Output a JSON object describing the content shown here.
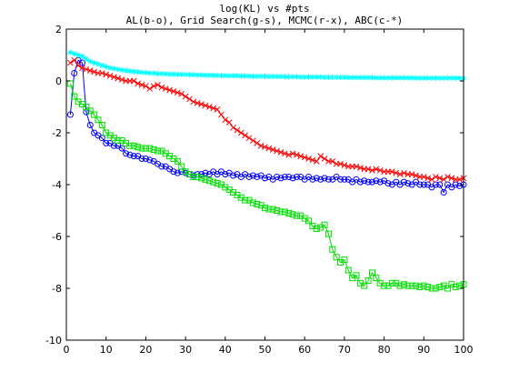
{
  "chart_data": {
    "type": "line",
    "title": "log(KL) vs #pts",
    "subtitle": "AL(b-o), Grid Search(g-s), MCMC(r-x), ABC(c-*)",
    "xlabel": "",
    "ylabel": "",
    "xlim": [
      0,
      100
    ],
    "ylim": [
      -10,
      2
    ],
    "xticks": [
      0,
      10,
      20,
      30,
      40,
      50,
      60,
      70,
      80,
      90,
      100
    ],
    "yticks": [
      -10,
      -8,
      -6,
      -4,
      -2,
      0,
      2
    ],
    "grid": false,
    "x": [
      1,
      2,
      3,
      4,
      5,
      6,
      7,
      8,
      9,
      10,
      11,
      12,
      13,
      14,
      15,
      16,
      17,
      18,
      19,
      20,
      21,
      22,
      23,
      24,
      25,
      26,
      27,
      28,
      29,
      30,
      31,
      32,
      33,
      34,
      35,
      36,
      37,
      38,
      39,
      40,
      41,
      42,
      43,
      44,
      45,
      46,
      47,
      48,
      49,
      50,
      51,
      52,
      53,
      54,
      55,
      56,
      57,
      58,
      59,
      60,
      61,
      62,
      63,
      64,
      65,
      66,
      67,
      68,
      69,
      70,
      71,
      72,
      73,
      74,
      75,
      76,
      77,
      78,
      79,
      80,
      81,
      82,
      83,
      84,
      85,
      86,
      87,
      88,
      89,
      90,
      91,
      92,
      93,
      94,
      95,
      96,
      97,
      98,
      99,
      100
    ],
    "series": [
      {
        "marker": "circle",
        "color": "#0000ff",
        "values": [
          -1.3,
          0.3,
          0.8,
          0.7,
          -1.2,
          -1.7,
          -2.0,
          -2.1,
          -2.2,
          -2.4,
          -2.4,
          -2.5,
          -2.5,
          -2.6,
          -2.8,
          -2.85,
          -2.9,
          -2.9,
          -3.0,
          -3.0,
          -3.05,
          -3.1,
          -3.2,
          -3.3,
          -3.3,
          -3.4,
          -3.5,
          -3.55,
          -3.5,
          -3.55,
          -3.6,
          -3.65,
          -3.6,
          -3.6,
          -3.55,
          -3.6,
          -3.5,
          -3.6,
          -3.5,
          -3.6,
          -3.55,
          -3.65,
          -3.6,
          -3.7,
          -3.6,
          -3.7,
          -3.65,
          -3.7,
          -3.65,
          -3.75,
          -3.7,
          -3.8,
          -3.7,
          -3.75,
          -3.7,
          -3.7,
          -3.75,
          -3.7,
          -3.7,
          -3.8,
          -3.7,
          -3.8,
          -3.75,
          -3.8,
          -3.75,
          -3.8,
          -3.8,
          -3.7,
          -3.8,
          -3.8,
          -3.8,
          -3.9,
          -3.8,
          -3.9,
          -3.85,
          -3.9,
          -3.9,
          -3.85,
          -3.9,
          -3.85,
          -3.95,
          -4.0,
          -3.9,
          -4.0,
          -3.9,
          -3.95,
          -4.0,
          -3.9,
          -4.0,
          -4.0,
          -4.0,
          -4.1,
          -4.0,
          -4.0,
          -4.3,
          -4.0,
          -4.1,
          -4.0,
          -4.05,
          -4.0
        ]
      },
      {
        "marker": "square",
        "color": "#00e000",
        "values": [
          -0.1,
          -0.6,
          -0.8,
          -0.9,
          -1.0,
          -1.15,
          -1.3,
          -1.5,
          -1.7,
          -2.0,
          -2.1,
          -2.2,
          -2.3,
          -2.3,
          -2.4,
          -2.5,
          -2.5,
          -2.55,
          -2.6,
          -2.6,
          -2.6,
          -2.65,
          -2.7,
          -2.7,
          -2.8,
          -2.9,
          -3.0,
          -3.1,
          -3.3,
          -3.5,
          -3.6,
          -3.7,
          -3.7,
          -3.75,
          -3.8,
          -3.85,
          -3.9,
          -3.95,
          -4.0,
          -4.1,
          -4.2,
          -4.3,
          -4.4,
          -4.5,
          -4.6,
          -4.6,
          -4.7,
          -4.75,
          -4.8,
          -4.9,
          -4.95,
          -4.95,
          -5.0,
          -5.05,
          -5.05,
          -5.1,
          -5.15,
          -5.2,
          -5.2,
          -5.3,
          -5.4,
          -5.6,
          -5.7,
          -5.65,
          -5.55,
          -5.9,
          -6.5,
          -6.8,
          -7.0,
          -6.9,
          -7.3,
          -7.6,
          -7.5,
          -7.8,
          -7.9,
          -7.7,
          -7.4,
          -7.6,
          -7.8,
          -7.9,
          -7.9,
          -7.8,
          -7.8,
          -7.9,
          -7.85,
          -7.9,
          -7.9,
          -7.9,
          -7.95,
          -7.9,
          -7.95,
          -8.0,
          -8.0,
          -7.95,
          -7.9,
          -8.0,
          -7.85,
          -7.95,
          -7.9,
          -7.85
        ]
      },
      {
        "marker": "x",
        "color": "#ff0000",
        "values": [
          0.7,
          0.8,
          0.6,
          0.5,
          0.45,
          0.4,
          0.35,
          0.3,
          0.3,
          0.25,
          0.2,
          0.15,
          0.1,
          0.05,
          0.0,
          0.0,
          0.0,
          -0.1,
          -0.15,
          -0.2,
          -0.3,
          -0.2,
          -0.15,
          -0.25,
          -0.3,
          -0.35,
          -0.4,
          -0.45,
          -0.5,
          -0.6,
          -0.7,
          -0.8,
          -0.85,
          -0.9,
          -0.95,
          -1.0,
          -1.05,
          -1.1,
          -1.3,
          -1.5,
          -1.6,
          -1.8,
          -1.9,
          -2.0,
          -2.1,
          -2.2,
          -2.3,
          -2.4,
          -2.5,
          -2.55,
          -2.6,
          -2.65,
          -2.7,
          -2.75,
          -2.8,
          -2.85,
          -2.8,
          -2.85,
          -2.9,
          -2.95,
          -3.0,
          -3.05,
          -3.1,
          -2.9,
          -3.0,
          -3.1,
          -3.1,
          -3.2,
          -3.2,
          -3.25,
          -3.3,
          -3.3,
          -3.3,
          -3.35,
          -3.4,
          -3.4,
          -3.45,
          -3.4,
          -3.45,
          -3.5,
          -3.5,
          -3.5,
          -3.55,
          -3.6,
          -3.55,
          -3.6,
          -3.6,
          -3.65,
          -3.7,
          -3.7,
          -3.75,
          -3.8,
          -3.7,
          -3.75,
          -3.8,
          -3.7,
          -3.75,
          -3.8,
          -3.8,
          -3.75
        ]
      },
      {
        "marker": "star",
        "color": "#00ffff",
        "values": [
          1.1,
          1.05,
          1.0,
          0.95,
          0.85,
          0.75,
          0.7,
          0.65,
          0.6,
          0.55,
          0.5,
          0.48,
          0.45,
          0.42,
          0.4,
          0.38,
          0.36,
          0.35,
          0.33,
          0.32,
          0.3,
          0.3,
          0.28,
          0.28,
          0.27,
          0.26,
          0.26,
          0.25,
          0.25,
          0.25,
          0.24,
          0.24,
          0.23,
          0.23,
          0.22,
          0.22,
          0.22,
          0.21,
          0.21,
          0.2,
          0.2,
          0.2,
          0.2,
          0.19,
          0.19,
          0.19,
          0.18,
          0.18,
          0.18,
          0.18,
          0.17,
          0.17,
          0.17,
          0.17,
          0.16,
          0.16,
          0.16,
          0.16,
          0.15,
          0.15,
          0.15,
          0.15,
          0.15,
          0.15,
          0.14,
          0.14,
          0.14,
          0.14,
          0.14,
          0.14,
          0.13,
          0.13,
          0.13,
          0.13,
          0.13,
          0.13,
          0.13,
          0.12,
          0.12,
          0.12,
          0.12,
          0.12,
          0.12,
          0.12,
          0.12,
          0.12,
          0.12,
          0.11,
          0.11,
          0.11,
          0.11,
          0.11,
          0.11,
          0.11,
          0.11,
          0.11,
          0.11,
          0.11,
          0.11,
          0.1
        ]
      }
    ]
  }
}
